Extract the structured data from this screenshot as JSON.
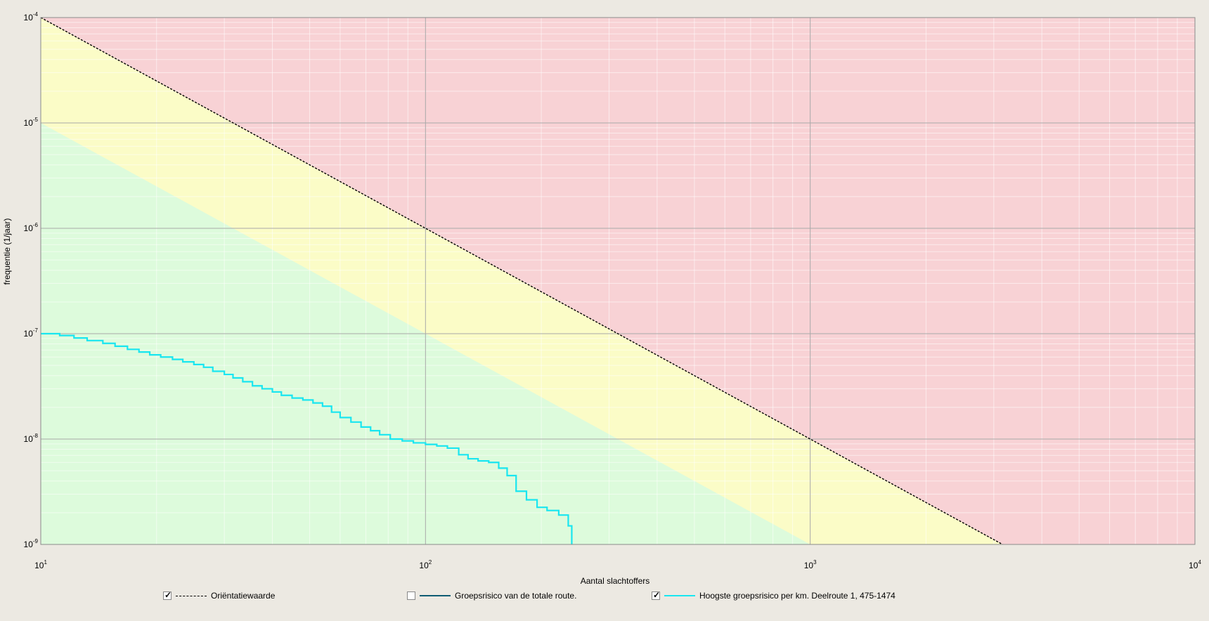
{
  "chart_data": {
    "type": "line",
    "xlabel": "Aantal slachtoffers",
    "ylabel": "frequentie (1/jaar)",
    "xscale": "log",
    "yscale": "log",
    "xlim": [
      1,
      10000
    ],
    "ylim": [
      1e-09,
      0.0001
    ],
    "grid": true,
    "x_ticks": [
      {
        "base": "10",
        "exp": "1",
        "value": 10
      },
      {
        "base": "10",
        "exp": "2",
        "value": 100
      },
      {
        "base": "10",
        "exp": "3",
        "value": 1000
      },
      {
        "base": "10",
        "exp": "4",
        "value": 10000
      }
    ],
    "y_ticks": [
      {
        "base": "10",
        "exp": "-4",
        "value": 0.0001
      },
      {
        "base": "10",
        "exp": "-5",
        "value": 1e-05
      },
      {
        "base": "10",
        "exp": "-6",
        "value": 1e-06
      },
      {
        "base": "10",
        "exp": "-7",
        "value": 1e-07
      },
      {
        "base": "10",
        "exp": "-8",
        "value": 1e-08
      },
      {
        "base": "10",
        "exp": "-9",
        "value": 1e-09
      }
    ],
    "zones": [
      {
        "color": "#f8d2d5",
        "from": [
          10,
          0.0001
        ],
        "to": [
          3162,
          1e-09
        ]
      },
      {
        "color": "#fbfcc7",
        "from": [
          10,
          0.0001
        ],
        "to": [
          3162,
          1e-09
        ]
      },
      {
        "color": "#ddfbdc",
        "from": [
          10,
          1e-05
        ],
        "to": [
          1000,
          1e-09
        ]
      }
    ],
    "series": [
      {
        "name": "Oriëntatiewaarde",
        "checked": true,
        "color": "#000000",
        "style": "dashed",
        "x": [
          10,
          3162
        ],
        "y": [
          0.0001,
          1e-09
        ]
      },
      {
        "name": "Groepsrisico van de totale route.",
        "checked": false,
        "color": "#0e5c73",
        "style": "solid",
        "x": [],
        "y": []
      },
      {
        "name": "Hoogste groepsrisico per km. Deelroute 1, 475-1474",
        "checked": true,
        "color": "#19e6f0",
        "style": "step",
        "x": [
          10,
          11.2,
          12.2,
          13.2,
          14.5,
          15.6,
          16.8,
          18,
          19.2,
          20.5,
          22,
          23.4,
          25,
          26.5,
          28,
          30,
          31.6,
          33.5,
          35.5,
          37.6,
          40,
          42.2,
          45,
          48,
          51,
          54,
          57,
          60,
          64,
          68,
          72,
          76,
          81,
          87,
          93,
          100,
          107,
          114,
          122,
          129,
          137,
          146,
          155,
          163,
          172,
          183,
          195,
          207,
          222,
          235
        ],
        "y": [
          1e-07,
          9.6e-08,
          9.1e-08,
          8.6e-08,
          8.1e-08,
          7.6e-08,
          7.1e-08,
          6.7e-08,
          6.3e-08,
          6e-08,
          5.7e-08,
          5.4e-08,
          5.1e-08,
          4.8e-08,
          4.4e-08,
          4.1e-08,
          3.8e-08,
          3.5e-08,
          3.2e-08,
          3e-08,
          2.8e-08,
          2.6e-08,
          2.45e-08,
          2.35e-08,
          2.2e-08,
          2.05e-08,
          1.8e-08,
          1.6e-08,
          1.45e-08,
          1.3e-08,
          1.2e-08,
          1.1e-08,
          1e-08,
          9.6e-09,
          9.2e-09,
          8.9e-09,
          8.6e-09,
          8.2e-09,
          7.1e-09,
          6.5e-09,
          6.2e-09,
          6e-09,
          5.3e-09,
          4.5e-09,
          3.2e-09,
          2.65e-09,
          2.25e-09,
          2.1e-09,
          1.9e-09,
          1.5e-09
        ]
      }
    ]
  }
}
